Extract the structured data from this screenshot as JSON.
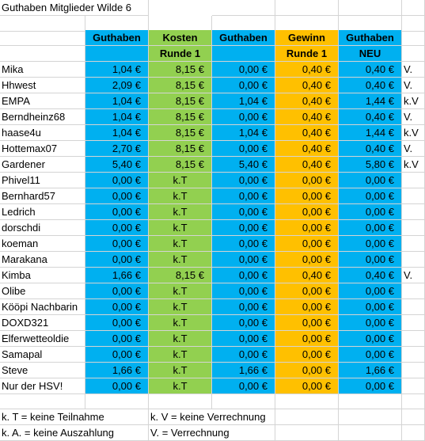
{
  "title": "Guthaben Mitglieder Wilde 6",
  "headers": {
    "row1": [
      "Guthaben",
      "Kosten",
      "Guthaben",
      "Gewinn",
      "Guthaben"
    ],
    "row2": [
      "",
      "Runde 1",
      "",
      "Runde 1",
      "NEU"
    ]
  },
  "rows": [
    {
      "name": "Mika",
      "g1": "1,04 €",
      "k": "8,15 €",
      "g2": "0,00 €",
      "w": "0,40 €",
      "neu": "0,40 €",
      "note": "V."
    },
    {
      "name": "Hhwest",
      "g1": "2,09 €",
      "k": "8,15 €",
      "g2": "0,00 €",
      "w": "0,40 €",
      "neu": "0,40 €",
      "note": "V."
    },
    {
      "name": "EMPA",
      "g1": "1,04 €",
      "k": "8,15 €",
      "g2": "1,04 €",
      "w": "0,40 €",
      "neu": "1,44 €",
      "note": "k.V"
    },
    {
      "name": "Berndheinz68",
      "g1": "1,04 €",
      "k": "8,15 €",
      "g2": "0,00 €",
      "w": "0,40 €",
      "neu": "0,40 €",
      "note": "V."
    },
    {
      "name": "haase4u",
      "g1": "1,04 €",
      "k": "8,15 €",
      "g2": "1,04 €",
      "w": "0,40 €",
      "neu": "1,44 €",
      "note": "k.V"
    },
    {
      "name": "Hottemax07",
      "g1": "2,70 €",
      "k": "8,15 €",
      "g2": "0,00 €",
      "w": "0,40 €",
      "neu": "0,40 €",
      "note": "V."
    },
    {
      "name": "Gardener",
      "g1": "5,40 €",
      "k": "8,15 €",
      "g2": "5,40 €",
      "w": "0,40 €",
      "neu": "5,80 €",
      "note": "k.V"
    },
    {
      "name": "Phivel11",
      "g1": "0,00 €",
      "k": "k.T",
      "g2": "0,00 €",
      "w": "0,00 €",
      "neu": "0,00 €",
      "note": ""
    },
    {
      "name": "Bernhard57",
      "g1": "0,00 €",
      "k": "k.T",
      "g2": "0,00 €",
      "w": "0,00 €",
      "neu": "0,00 €",
      "note": ""
    },
    {
      "name": "Ledrich",
      "g1": "0,00 €",
      "k": "k.T",
      "g2": "0,00 €",
      "w": "0,00 €",
      "neu": "0,00 €",
      "note": ""
    },
    {
      "name": "dorschdi",
      "g1": "0,00 €",
      "k": "k.T",
      "g2": "0,00 €",
      "w": "0,00 €",
      "neu": "0,00 €",
      "note": ""
    },
    {
      "name": "koeman",
      "g1": "0,00 €",
      "k": "k.T",
      "g2": "0,00 €",
      "w": "0,00 €",
      "neu": "0,00 €",
      "note": ""
    },
    {
      "name": "Marakana",
      "g1": "0,00 €",
      "k": "k.T",
      "g2": "0,00 €",
      "w": "0,00 €",
      "neu": "0,00 €",
      "note": ""
    },
    {
      "name": "Kimba",
      "g1": "1,66 €",
      "k": "8,15 €",
      "g2": "0,00 €",
      "w": "0,40 €",
      "neu": "0,40 €",
      "note": "V."
    },
    {
      "name": "Olibe",
      "g1": "0,00 €",
      "k": "k.T",
      "g2": "0,00 €",
      "w": "0,00 €",
      "neu": "0,00 €",
      "note": ""
    },
    {
      "name": "Kööpi Nachbarin",
      "g1": "0,00 €",
      "k": "k.T",
      "g2": "0,00 €",
      "w": "0,00 €",
      "neu": "0,00 €",
      "note": ""
    },
    {
      "name": "DOXD321",
      "g1": "0,00 €",
      "k": "k.T",
      "g2": "0,00 €",
      "w": "0,00 €",
      "neu": "0,00 €",
      "note": ""
    },
    {
      "name": "Elferwetteoldie",
      "g1": "0,00 €",
      "k": "k.T",
      "g2": "0,00 €",
      "w": "0,00 €",
      "neu": "0,00 €",
      "note": ""
    },
    {
      "name": "Samapal",
      "g1": "0,00 €",
      "k": "k.T",
      "g2": "0,00 €",
      "w": "0,00 €",
      "neu": "0,00 €",
      "note": ""
    },
    {
      "name": "Steve",
      "g1": "1,66 €",
      "k": "k.T",
      "g2": "1,66 €",
      "w": "0,00 €",
      "neu": "1,66 €",
      "note": ""
    },
    {
      "name": "Nur der HSV!",
      "g1": "0,00 €",
      "k": "k.T",
      "g2": "0,00 €",
      "w": "0,00 €",
      "neu": "0,00 €",
      "note": ""
    }
  ],
  "legend": {
    "kt": "k. T = keine Teilnahme",
    "kv": "k. V = keine Verrechnung",
    "ka": "k. A. = keine Auszahlung",
    "v": "V. = Verrechnung"
  },
  "colors": {
    "guthaben": "#00b0f0",
    "kosten": "#92d050",
    "gewinn": "#ffc000"
  }
}
